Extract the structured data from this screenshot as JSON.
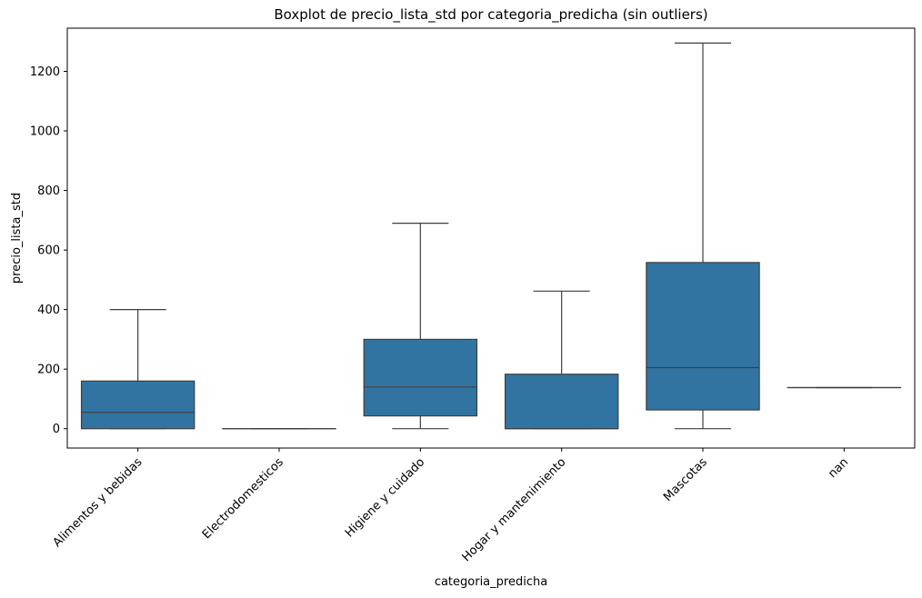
{
  "chart_data": {
    "type": "boxplot",
    "title": "Boxplot de precio_lista_std por categoria_predicha (sin outliers)",
    "xlabel": "categoria_predicha",
    "ylabel": "precio_lista_std",
    "ylim": [
      -65,
      1345
    ],
    "yticks": [
      0,
      200,
      400,
      600,
      800,
      1000,
      1200
    ],
    "grid": false,
    "box_color": "#3274a1",
    "line_color": "#3f3f3f",
    "categories": [
      "Alimentos y bebidas",
      "Electrodomesticos",
      "Higiene y cuidado",
      "Hogar y mantenimiento",
      "Mascotas",
      "nan"
    ],
    "boxes": [
      {
        "category": "Alimentos y bebidas",
        "whisker_low": 0,
        "q1": 0,
        "median": 55,
        "q3": 160,
        "whisker_high": 400
      },
      {
        "category": "Electrodomesticos",
        "whisker_low": 0,
        "q1": 0,
        "median": 0,
        "q3": 0,
        "whisker_high": 0
      },
      {
        "category": "Higiene y cuidado",
        "whisker_low": 0,
        "q1": 43,
        "median": 140,
        "q3": 300,
        "whisker_high": 690
      },
      {
        "category": "Hogar y mantenimiento",
        "whisker_low": 0,
        "q1": 0,
        "median": 0,
        "q3": 183,
        "whisker_high": 462
      },
      {
        "category": "Mascotas",
        "whisker_low": 0,
        "q1": 63,
        "median": 205,
        "q3": 558,
        "whisker_high": 1295
      },
      {
        "category": "nan",
        "whisker_low": 138,
        "q1": 138,
        "median": 138,
        "q3": 138,
        "whisker_high": 138
      }
    ]
  }
}
